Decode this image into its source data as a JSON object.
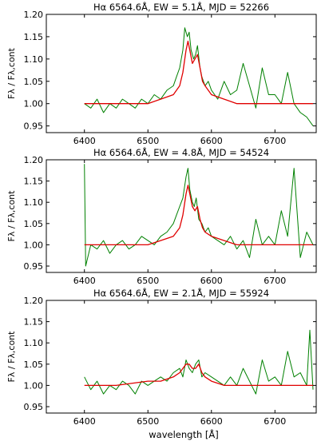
{
  "figure": {
    "xlabel": "wavelength [Å]",
    "ylabel": "Fλ / Fλ,cont",
    "colors": {
      "observed": "#008000",
      "model": "#e00000"
    }
  },
  "chart_data": [
    {
      "type": "line",
      "title": "Hα 6564.6Å, EW = 5.1Å, MJD = 52266",
      "xlim": [
        6340,
        6765
      ],
      "ylim": [
        0.935,
        1.2
      ],
      "xticks": [
        6400,
        6500,
        6600,
        6700
      ],
      "yticks": [
        0.95,
        1.0,
        1.05,
        1.1,
        1.15,
        1.2
      ],
      "series": [
        {
          "role": "observed",
          "x": [
            6400,
            6410,
            6420,
            6430,
            6440,
            6450,
            6460,
            6470,
            6480,
            6490,
            6500,
            6510,
            6520,
            6530,
            6540,
            6545,
            6550,
            6555,
            6558,
            6562,
            6565,
            6568,
            6572,
            6575,
            6578,
            6582,
            6585,
            6590,
            6595,
            6600,
            6605,
            6610,
            6620,
            6630,
            6640,
            6650,
            6660,
            6670,
            6680,
            6690,
            6700,
            6710,
            6720,
            6730,
            6740,
            6750,
            6760
          ],
          "y": [
            1.0,
            0.99,
            1.01,
            0.98,
            1.0,
            0.99,
            1.01,
            1.0,
            0.99,
            1.01,
            1.0,
            1.02,
            1.01,
            1.03,
            1.04,
            1.06,
            1.08,
            1.12,
            1.17,
            1.15,
            1.16,
            1.12,
            1.1,
            1.11,
            1.13,
            1.08,
            1.06,
            1.04,
            1.05,
            1.03,
            1.02,
            1.01,
            1.05,
            1.02,
            1.03,
            1.09,
            1.04,
            0.99,
            1.08,
            1.02,
            1.02,
            1.0,
            1.07,
            1.0,
            0.98,
            0.97,
            0.95
          ]
        },
        {
          "role": "model",
          "x": [
            6400,
            6450,
            6500,
            6520,
            6540,
            6550,
            6555,
            6560,
            6563,
            6566,
            6570,
            6574,
            6578,
            6582,
            6586,
            6590,
            6600,
            6620,
            6640,
            6660,
            6700,
            6760
          ],
          "y": [
            1.0,
            1.0,
            1.0,
            1.01,
            1.02,
            1.04,
            1.07,
            1.12,
            1.14,
            1.12,
            1.09,
            1.1,
            1.11,
            1.08,
            1.05,
            1.04,
            1.02,
            1.01,
            1.0,
            1.0,
            1.0,
            1.0
          ]
        }
      ]
    },
    {
      "type": "line",
      "title": "Hα 6564.6Å, EW = 4.8Å, MJD = 54524",
      "xlim": [
        6340,
        6765
      ],
      "ylim": [
        0.935,
        1.2
      ],
      "xticks": [
        6400,
        6500,
        6600,
        6700
      ],
      "yticks": [
        0.95,
        1.0,
        1.05,
        1.1,
        1.15,
        1.2
      ],
      "series": [
        {
          "role": "observed",
          "x": [
            6400,
            6402,
            6410,
            6420,
            6430,
            6440,
            6450,
            6460,
            6470,
            6480,
            6490,
            6500,
            6510,
            6520,
            6530,
            6540,
            6545,
            6550,
            6555,
            6560,
            6563,
            6566,
            6570,
            6573,
            6576,
            6580,
            6585,
            6590,
            6595,
            6600,
            6610,
            6620,
            6630,
            6640,
            6650,
            6660,
            6670,
            6680,
            6690,
            6700,
            6710,
            6720,
            6730,
            6740,
            6750,
            6760
          ],
          "y": [
            1.19,
            0.95,
            1.0,
            0.99,
            1.01,
            0.98,
            1.0,
            1.01,
            0.99,
            1.0,
            1.02,
            1.01,
            1.0,
            1.02,
            1.03,
            1.05,
            1.07,
            1.09,
            1.11,
            1.16,
            1.18,
            1.13,
            1.1,
            1.09,
            1.11,
            1.06,
            1.05,
            1.03,
            1.04,
            1.02,
            1.01,
            1.0,
            1.02,
            0.99,
            1.01,
            0.97,
            1.06,
            1.0,
            1.02,
            1.0,
            1.08,
            1.02,
            1.18,
            0.97,
            1.03,
            1.0
          ]
        },
        {
          "role": "model",
          "x": [
            6400,
            6450,
            6500,
            6520,
            6540,
            6550,
            6555,
            6560,
            6563,
            6566,
            6570,
            6574,
            6578,
            6582,
            6586,
            6590,
            6600,
            6620,
            6640,
            6660,
            6700,
            6760
          ],
          "y": [
            1.0,
            1.0,
            1.0,
            1.01,
            1.02,
            1.04,
            1.07,
            1.12,
            1.14,
            1.12,
            1.09,
            1.08,
            1.09,
            1.06,
            1.04,
            1.03,
            1.02,
            1.01,
            1.0,
            1.0,
            1.0,
            1.0
          ]
        }
      ]
    },
    {
      "type": "line",
      "title": "Hα 6564.6Å, EW = 2.1Å, MJD = 55924",
      "xlim": [
        6340,
        6765
      ],
      "ylim": [
        0.935,
        1.2
      ],
      "xticks": [
        6400,
        6500,
        6600,
        6700
      ],
      "yticks": [
        0.95,
        1.0,
        1.05,
        1.1,
        1.15,
        1.2
      ],
      "series": [
        {
          "role": "observed",
          "x": [
            6400,
            6410,
            6420,
            6430,
            6440,
            6450,
            6460,
            6470,
            6480,
            6490,
            6500,
            6510,
            6520,
            6530,
            6540,
            6550,
            6555,
            6560,
            6565,
            6570,
            6575,
            6580,
            6585,
            6590,
            6600,
            6610,
            6620,
            6630,
            6640,
            6650,
            6660,
            6670,
            6680,
            6690,
            6700,
            6710,
            6720,
            6730,
            6740,
            6750,
            6755,
            6760
          ],
          "y": [
            1.02,
            0.99,
            1.01,
            0.98,
            1.0,
            0.99,
            1.01,
            1.0,
            0.98,
            1.01,
            1.0,
            1.01,
            1.02,
            1.01,
            1.03,
            1.04,
            1.02,
            1.06,
            1.04,
            1.03,
            1.05,
            1.06,
            1.02,
            1.03,
            1.02,
            1.01,
            1.0,
            1.02,
            1.0,
            1.04,
            1.01,
            0.98,
            1.06,
            1.01,
            1.02,
            1.0,
            1.08,
            1.02,
            1.03,
            1.0,
            1.13,
            0.99
          ]
        },
        {
          "role": "model",
          "x": [
            6400,
            6450,
            6500,
            6520,
            6540,
            6550,
            6555,
            6560,
            6565,
            6570,
            6575,
            6580,
            6585,
            6590,
            6600,
            6620,
            6640,
            6700,
            6760
          ],
          "y": [
            1.0,
            1.0,
            1.01,
            1.01,
            1.02,
            1.03,
            1.04,
            1.05,
            1.05,
            1.04,
            1.04,
            1.05,
            1.03,
            1.02,
            1.01,
            1.0,
            1.0,
            1.0,
            1.0
          ]
        }
      ]
    }
  ]
}
